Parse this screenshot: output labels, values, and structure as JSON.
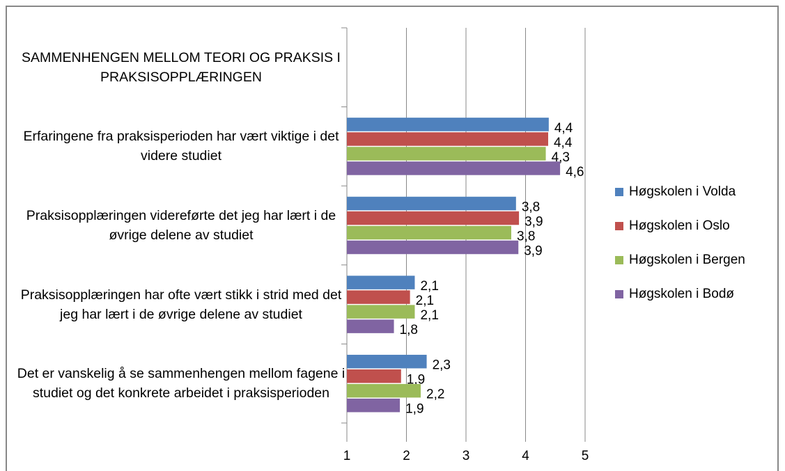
{
  "chart_data": {
    "type": "bar",
    "orientation": "horizontal",
    "categories": [
      "SAMMENHENGEN MELLOM TEORI OG PRAKSIS I PRAKSISOPPLÆRINGEN",
      "Erfaringene fra praksisperioden har vært viktige i det videre studiet",
      "Praksisopplæringen videreførte det jeg har lært i de øvrige delene av studiet",
      "Praksisopplæringen har ofte vært stikk i strid med det jeg har lært i de øvrige delene av studiet",
      "Det er vanskelig å se sammenhengen mellom fagene i studiet og det konkrete arbeidet i praksisperioden"
    ],
    "series": [
      {
        "name": "Høgskolen i Volda",
        "color": "#4f81bd",
        "values": [
          null,
          4.39,
          3.84,
          2.14,
          2.34
        ],
        "value_labels": [
          null,
          "4,4",
          "3,8",
          "2,1",
          "2,3"
        ]
      },
      {
        "name": "Høgskolen i Oslo",
        "color": "#c0504d",
        "values": [
          null,
          4.38,
          3.89,
          2.06,
          1.91
        ],
        "value_labels": [
          null,
          "4,4",
          "3,9",
          "2,1",
          "1,9"
        ]
      },
      {
        "name": "Høgskolen i Bergen",
        "color": "#9bbb59",
        "values": [
          null,
          4.34,
          3.76,
          2.14,
          2.24
        ],
        "value_labels": [
          null,
          "4,3",
          "3,8",
          "2,1",
          "2,2"
        ]
      },
      {
        "name": "Høgskolen i Bodø",
        "color": "#8064a2",
        "values": [
          null,
          4.58,
          3.88,
          1.79,
          1.89
        ],
        "value_labels": [
          null,
          "4,6",
          "3,9",
          "1,8",
          "1,9"
        ]
      }
    ],
    "xlim": [
      1,
      5
    ],
    "xticks": [
      1,
      2,
      3,
      4,
      5
    ],
    "grid": true,
    "legend": "right"
  }
}
